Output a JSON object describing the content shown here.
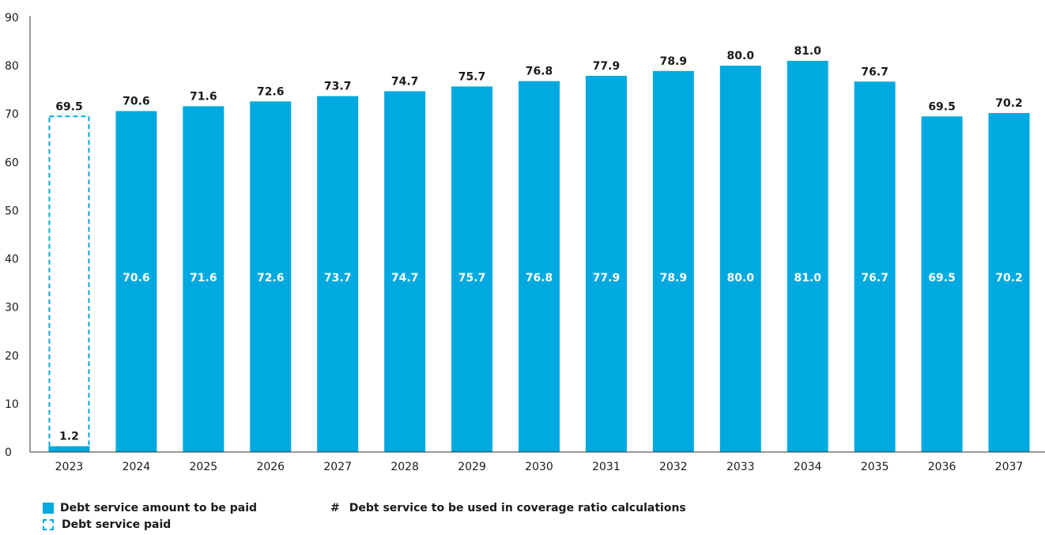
{
  "chart_data": {
    "type": "bar",
    "title": "",
    "xlabel": "",
    "ylabel": "",
    "ylim": [
      0,
      90
    ],
    "yticks": [
      0,
      10,
      20,
      30,
      40,
      50,
      60,
      70,
      80,
      90
    ],
    "categories": [
      "2023",
      "2024",
      "2025",
      "2026",
      "2027",
      "2028",
      "2029",
      "2030",
      "2031",
      "2032",
      "2033",
      "2034",
      "2035",
      "2036",
      "2037"
    ],
    "series": [
      {
        "name": "Debt service amount to be paid",
        "style": "solid",
        "color": "#00a9e0",
        "values": [
          1.2,
          70.6,
          71.6,
          72.6,
          73.7,
          74.7,
          75.7,
          76.8,
          77.9,
          78.9,
          80.0,
          81.0,
          76.7,
          69.5,
          70.2
        ],
        "value_labels": [
          "1.2",
          "70.6",
          "71.6",
          "72.6",
          "73.7",
          "74.7",
          "75.7",
          "76.8",
          "77.9",
          "78.9",
          "80.0",
          "81.0",
          "76.7",
          "69.5",
          "70.2"
        ]
      },
      {
        "name": "Debt service paid",
        "style": "dashed",
        "color": "#00a9e0",
        "values": [
          69.5,
          null,
          null,
          null,
          null,
          null,
          null,
          null,
          null,
          null,
          null,
          null,
          null,
          null,
          null
        ],
        "value_labels": [
          "69.5",
          "",
          "",
          "",
          "",
          "",
          "",
          "",
          "",
          "",
          "",
          "",
          "",
          "",
          ""
        ]
      },
      {
        "name": "Debt service to be used in coverage ratio calculations",
        "style": "inner-label",
        "values": [
          null,
          70.6,
          71.6,
          72.6,
          73.7,
          74.7,
          75.7,
          76.8,
          77.9,
          78.9,
          80.0,
          81.0,
          76.7,
          69.5,
          70.2
        ],
        "value_labels": [
          "",
          "70.6",
          "71.6",
          "72.6",
          "73.7",
          "74.7",
          "75.7",
          "76.8",
          "77.9",
          "78.9",
          "80.0",
          "81.0",
          "76.7",
          "69.5",
          "70.2"
        ]
      }
    ],
    "grid": false,
    "legend_position": "bottom-left"
  },
  "legend": {
    "paid_amount": "Debt service amount to be paid",
    "paid": "Debt service paid",
    "coverage_symbol": "#",
    "coverage": "Debt service to be used in coverage ratio calculations"
  }
}
